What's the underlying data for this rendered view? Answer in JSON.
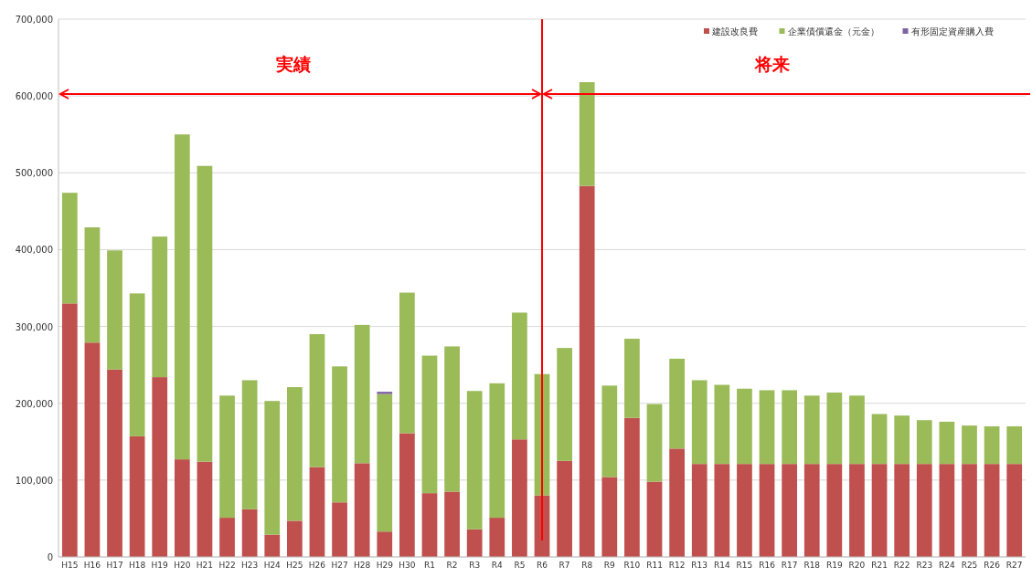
{
  "chart_data": {
    "type": "bar",
    "stacked": true,
    "categories": [
      "H15",
      "H16",
      "H17",
      "H18",
      "H19",
      "H20",
      "H21",
      "H22",
      "H23",
      "H24",
      "H25",
      "H26",
      "H27",
      "H28",
      "H29",
      "H30",
      "R1",
      "R2",
      "R3",
      "R4",
      "R5",
      "R6",
      "R7",
      "R8",
      "R9",
      "R10",
      "R11",
      "R12",
      "R13",
      "R14",
      "R15",
      "R16",
      "R17",
      "R18",
      "R19",
      "R20",
      "R21",
      "R22",
      "R23",
      "R24",
      "R25",
      "R26",
      "R27"
    ],
    "series": [
      {
        "name": "建設改良費",
        "color": "#c0504d",
        "values": [
          330000,
          279000,
          244000,
          157000,
          234000,
          127000,
          124000,
          51000,
          62000,
          29000,
          47000,
          117000,
          71000,
          122000,
          33000,
          161000,
          83000,
          85000,
          36000,
          51000,
          153000,
          80000,
          125000,
          483000,
          104000,
          181000,
          98000,
          141000,
          121000,
          121000,
          121000,
          121000,
          121000,
          121000,
          121000,
          121000,
          121000,
          121000,
          121000,
          121000,
          121000,
          121000,
          121000
        ]
      },
      {
        "name": "企業債償還金（元金）",
        "color": "#9bbb59",
        "values": [
          144000,
          150000,
          155000,
          186000,
          183000,
          423000,
          385000,
          159000,
          168000,
          174000,
          174000,
          173000,
          177000,
          180000,
          179000,
          183000,
          179000,
          189000,
          180000,
          175000,
          165000,
          158000,
          147000,
          135000,
          119000,
          103000,
          101000,
          117000,
          109000,
          103000,
          98000,
          96000,
          96000,
          89000,
          93000,
          89000,
          65000,
          63000,
          57000,
          55000,
          50000,
          49000,
          49000
        ]
      },
      {
        "name": "有形固定資産購入費",
        "color": "#8064a2",
        "values": [
          null,
          null,
          null,
          null,
          null,
          null,
          null,
          null,
          null,
          null,
          null,
          null,
          null,
          null,
          3000,
          null,
          null,
          null,
          null,
          null,
          null,
          null,
          null,
          null,
          null,
          null,
          null,
          null,
          null,
          null,
          null,
          null,
          null,
          null,
          null,
          null,
          null,
          null,
          null,
          null,
          null,
          null,
          null
        ]
      }
    ],
    "ylim": [
      0,
      700000
    ],
    "yticks": [
      0,
      {
        "value": 100000,
        "label": "100,000"
      },
      {
        "value": 200000,
        "label": "200,000"
      },
      {
        "value": 300000,
        "label": "300,000"
      },
      {
        "value": 400000,
        "label": "400,000"
      },
      {
        "value": 500000,
        "label": "500,000"
      },
      {
        "value": 600000,
        "label": "600,000"
      },
      {
        "value": 700000,
        "label": "700,000"
      }
    ],
    "grid": "y",
    "legend": "top right",
    "ref_lines": [
      {
        "axis": "x",
        "value": "R6",
        "color": "#ff0000"
      }
    ],
    "annotations": [
      "実績",
      "将来"
    ]
  }
}
